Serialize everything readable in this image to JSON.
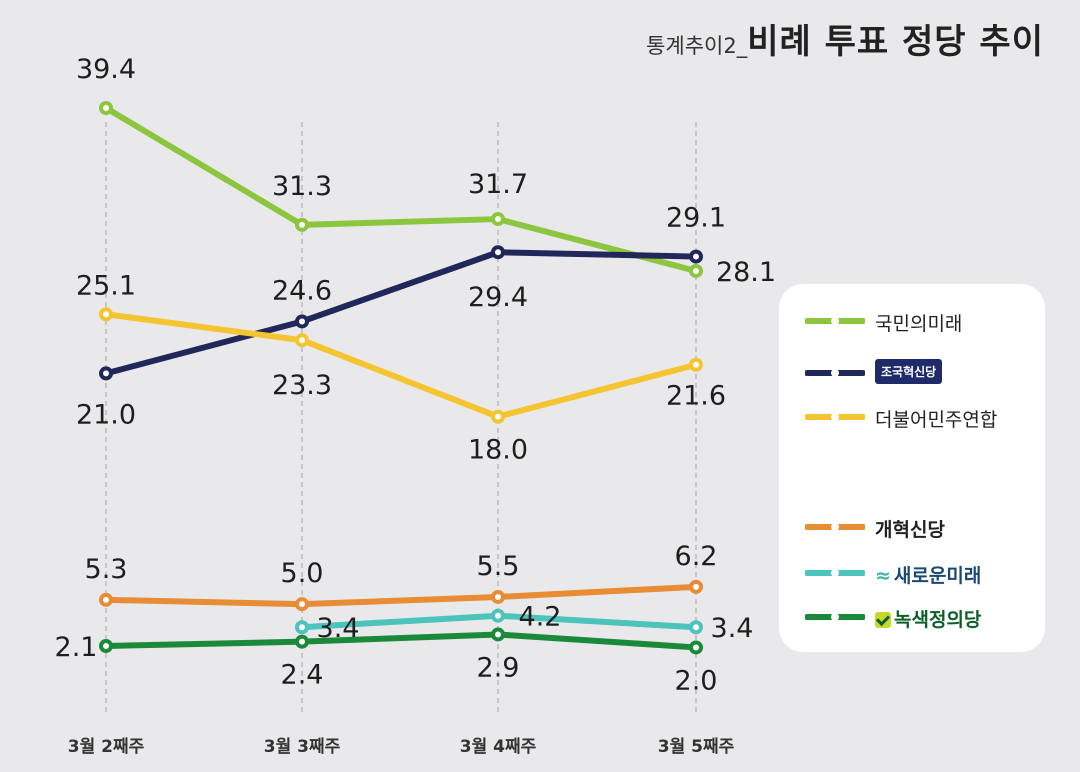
{
  "title": {
    "prefix": "통계추이2_",
    "main": "비례 투표 정당 추이"
  },
  "chart_data": {
    "type": "line",
    "categories": [
      "3월 2째주",
      "3월 3째주",
      "3월 4째주",
      "3월 5째주"
    ],
    "ylim": [
      0,
      42
    ],
    "grid": "vertical dashed",
    "legend_position": "right",
    "series": [
      {
        "name": "국민의미래",
        "color": "#8cc63f",
        "values": [
          39.4,
          31.3,
          31.7,
          28.1
        ]
      },
      {
        "name": "조국혁신당",
        "color": "#22275a",
        "values": [
          21.0,
          24.6,
          29.4,
          29.1
        ]
      },
      {
        "name": "더불어민주연합",
        "color": "#f5c531",
        "values": [
          25.1,
          23.3,
          18.0,
          21.6
        ]
      },
      {
        "name": "개혁신당",
        "color": "#e88c35",
        "values": [
          5.3,
          5.0,
          5.5,
          6.2
        ]
      },
      {
        "name": "새로운미래",
        "color": "#4cc3bb",
        "values": [
          null,
          3.4,
          4.2,
          3.4
        ]
      },
      {
        "name": "녹색정의당",
        "color": "#1a8a3a",
        "values": [
          2.1,
          2.4,
          2.9,
          2.0
        ]
      }
    ],
    "data_labels": [
      {
        "series": "국민의미래",
        "values": [
          "39.4",
          "31.3",
          "31.7",
          "28.1"
        ]
      },
      {
        "series": "조국혁신당",
        "values": [
          "21.0",
          "24.6",
          "29.4",
          "29.1"
        ]
      },
      {
        "series": "더불어민주연합",
        "values": [
          "25.1",
          "23.3",
          "18.0",
          "21.6"
        ]
      },
      {
        "series": "개혁신당",
        "values": [
          "5.3",
          "5.0",
          "5.5",
          "6.2"
        ]
      },
      {
        "series": "새로운미래",
        "values": [
          "",
          "3.4",
          "4.2",
          "3.4"
        ]
      },
      {
        "series": "녹색정의당",
        "values": [
          "2.1",
          "2.4",
          "2.9",
          "2.0"
        ]
      }
    ]
  },
  "legend": {
    "items": [
      {
        "label": "국민의미래",
        "color": "#8cc63f",
        "style": "plain"
      },
      {
        "label": "조국혁신당",
        "color": "#22275a",
        "style": "badge"
      },
      {
        "label": "더불어민주연합",
        "color": "#f5c531",
        "style": "plain"
      },
      {
        "label": "개혁신당",
        "color": "#e88c35",
        "style": "orange"
      },
      {
        "label": "새로운미래",
        "color": "#4cc3bb",
        "style": "teal"
      },
      {
        "label": "녹색정의당",
        "color": "#1a8a3a",
        "style": "green"
      }
    ]
  }
}
